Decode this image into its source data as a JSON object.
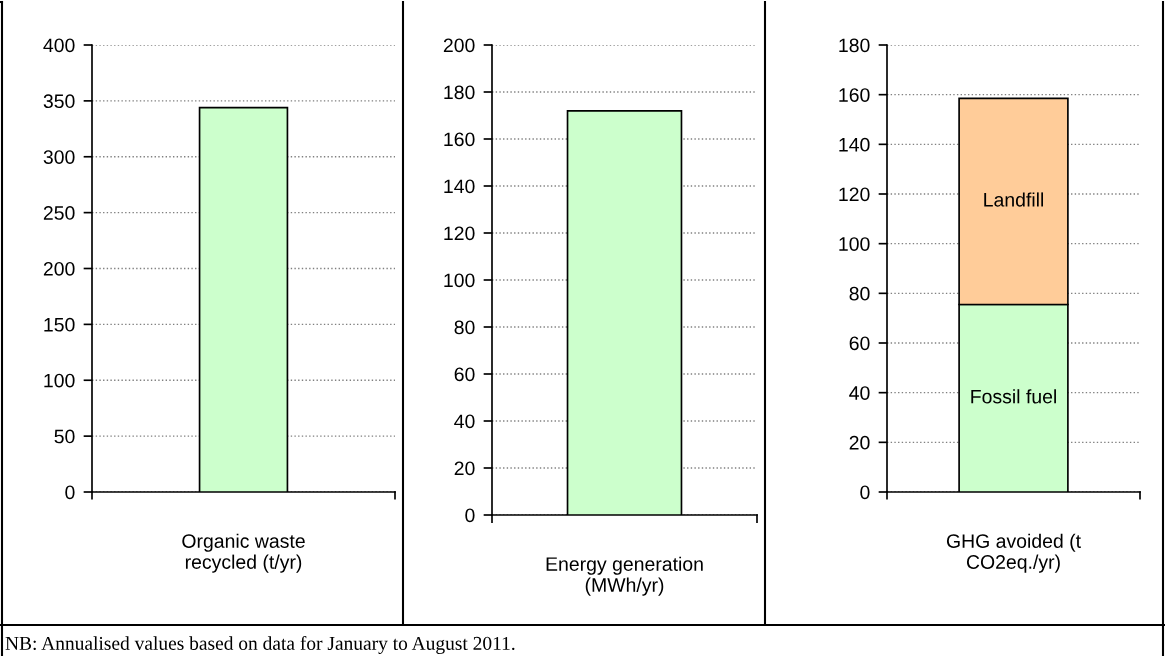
{
  "chart_data": [
    {
      "type": "bar",
      "categories": [
        "Organic waste\nrecycled (t/yr)"
      ],
      "values": [
        344
      ],
      "color": "#ccffcc",
      "ylim": [
        0,
        400
      ],
      "yticks": [
        0,
        50,
        100,
        150,
        200,
        250,
        300,
        350,
        400
      ],
      "grid": "y",
      "legend": false
    },
    {
      "type": "bar",
      "categories": [
        "Energy generation\n(MWh/yr)"
      ],
      "values": [
        172
      ],
      "color": "#ccffcc",
      "ylim": [
        0,
        200
      ],
      "yticks": [
        0,
        20,
        40,
        60,
        80,
        100,
        120,
        140,
        160,
        180,
        200
      ],
      "grid": "y",
      "legend": false
    },
    {
      "type": "bar",
      "stacked": true,
      "categories": [
        "GHG avoided (t\nCO2eq./yr)"
      ],
      "series": [
        {
          "name": "Fossil fuel",
          "color": "#ccffcc",
          "values": [
            75.5
          ]
        },
        {
          "name": "Landfill",
          "color": "#ffcc99",
          "values": [
            83
          ]
        }
      ],
      "ylim": [
        0,
        180
      ],
      "yticks": [
        0,
        20,
        40,
        60,
        80,
        100,
        120,
        140,
        160,
        180
      ],
      "grid": "y",
      "legend": false,
      "annotations": [
        "NB: Annualised values based on data for January to August 2011."
      ]
    }
  ]
}
